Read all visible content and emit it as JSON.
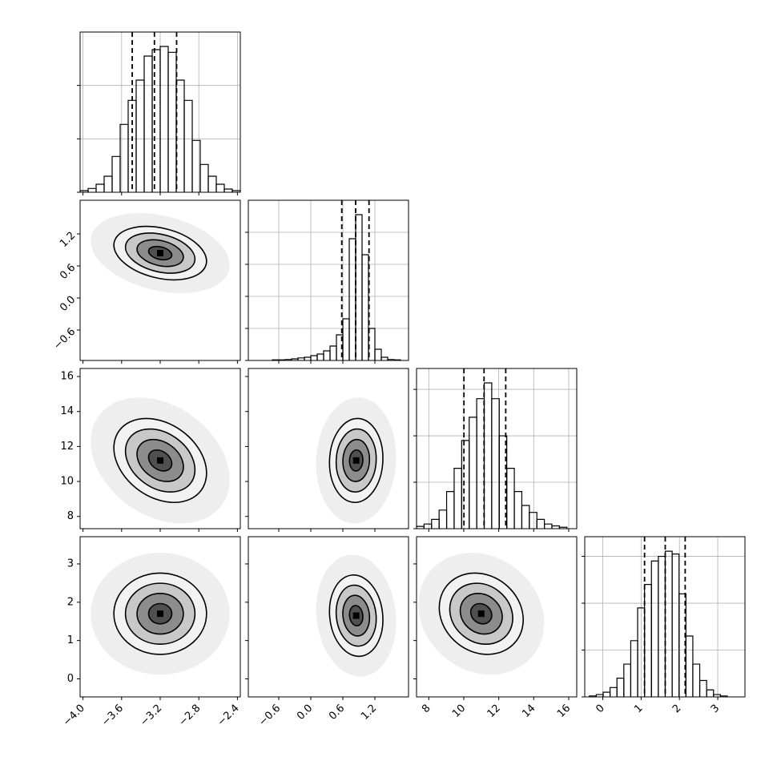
{
  "chart_data": {
    "type": "corner",
    "color": "#000000",
    "contour_levels": [
      0.5,
      1,
      1.5,
      2
    ],
    "params": [
      {
        "lim": [
          -4.03,
          -2.37
        ],
        "ticks": [
          {
            "value": -4.0,
            "label": "−4.0"
          },
          {
            "value": -3.6,
            "label": "−3.6"
          },
          {
            "value": -3.2,
            "label": "−3.2"
          },
          {
            "value": -2.8,
            "label": "−2.8"
          },
          {
            "value": -2.4,
            "label": "−2.4"
          }
        ],
        "quantiles": [
          -3.49,
          -3.26,
          -3.03
        ],
        "sd": 0.24,
        "bins": [
          -4.03,
          -3.947,
          -3.864,
          -3.781,
          -3.698,
          -3.615,
          -3.532,
          -3.449,
          -3.366,
          -3.283,
          -3.2,
          -3.117,
          -3.034,
          -2.951,
          -2.868,
          -2.785,
          -2.702,
          -2.619,
          -2.536,
          -2.453,
          -2.37
        ],
        "counts": [
          0.03,
          0.07,
          0.15,
          0.3,
          0.67,
          1.27,
          1.72,
          2.1,
          2.55,
          2.67,
          2.73,
          2.62,
          2.1,
          1.72,
          0.97,
          0.52,
          0.3,
          0.15,
          0.06,
          0.03
        ],
        "hist_ylim": [
          0,
          3
        ],
        "hist_yticks": [
          0,
          1,
          2
        ]
      },
      {
        "lim": [
          -1.17,
          1.83
        ],
        "ticks": [
          {
            "value": -0.6,
            "label": "−0.6"
          },
          {
            "value": 0.0,
            "label": "0.0"
          },
          0.6,
          1.2
        ],
        "quantiles": [
          0.58,
          0.84,
          1.09
        ],
        "sd": 0.25,
        "bins": [
          -0.72,
          -0.6,
          -0.48,
          -0.36,
          -0.24,
          -0.12,
          0,
          0.12,
          0.24,
          0.36,
          0.48,
          0.6,
          0.72,
          0.84,
          0.96,
          1.08,
          1.2,
          1.32,
          1.44,
          1.56,
          1.68
        ],
        "counts": [
          0.02,
          0.02,
          0.03,
          0.05,
          0.08,
          0.1,
          0.15,
          0.2,
          0.3,
          0.45,
          0.8,
          1.3,
          3.8,
          4.55,
          3.3,
          1.0,
          0.35,
          0.1,
          0.03,
          0.02
        ],
        "hist_ylim": [
          0,
          5
        ],
        "hist_yticks": [
          0,
          1,
          2,
          3,
          4
        ]
      },
      {
        "lim": [
          7.3,
          16.46
        ],
        "ticks": [
          8,
          10,
          12,
          14,
          16
        ],
        "quantiles": [
          10.01,
          11.16,
          12.4
        ],
        "sd": 1.2,
        "bins": [
          7.3,
          7.73,
          8.16,
          8.59,
          9.02,
          9.45,
          9.88,
          10.31,
          10.74,
          11.17,
          11.6,
          12.03,
          12.46,
          12.89,
          13.32,
          13.75,
          14.18,
          14.61,
          15.04,
          15.47,
          15.9
        ],
        "counts": [
          0.05,
          0.1,
          0.2,
          0.4,
          0.8,
          1.3,
          1.9,
          2.4,
          2.8,
          3.14,
          2.8,
          2.0,
          1.3,
          0.8,
          0.5,
          0.35,
          0.2,
          0.1,
          0.06,
          0.03
        ],
        "hist_ylim": [
          0,
          3.45
        ],
        "hist_yticks": [
          0,
          1,
          2,
          3
        ]
      },
      {
        "lim": [
          -0.47,
          3.71
        ],
        "ticks": [
          0,
          1,
          2,
          3
        ],
        "quantiles": [
          1.09,
          1.63,
          2.15
        ],
        "sd": 0.53,
        "bins": [
          -0.35,
          -0.17,
          0.01,
          0.19,
          0.37,
          0.55,
          0.73,
          0.91,
          1.09,
          1.27,
          1.45,
          1.63,
          1.81,
          1.99,
          2.17,
          2.35,
          2.53,
          2.71,
          2.89,
          3.07,
          3.25
        ],
        "counts": [
          0.02,
          0.05,
          0.1,
          0.2,
          0.4,
          0.7,
          1.2,
          1.9,
          2.4,
          2.9,
          3.0,
          3.11,
          3.05,
          2.2,
          1.3,
          0.7,
          0.35,
          0.15,
          0.05,
          0.02
        ],
        "hist_ylim": [
          0,
          3.42
        ],
        "hist_yticks": [
          0,
          1,
          2,
          3
        ]
      }
    ],
    "pairs": [
      {
        "x": 0,
        "y": 1,
        "center": [
          -3.2,
          0.84
        ],
        "rho": -0.3
      },
      {
        "x": 0,
        "y": 2,
        "center": [
          -3.2,
          11.2
        ],
        "rho": -0.3
      },
      {
        "x": 1,
        "y": 2,
        "center": [
          0.85,
          11.2
        ],
        "rho": 0.05
      },
      {
        "x": 0,
        "y": 3,
        "center": [
          -3.2,
          1.7
        ],
        "rho": 0
      },
      {
        "x": 1,
        "y": 3,
        "center": [
          0.85,
          1.65
        ],
        "rho": -0.1
      },
      {
        "x": 2,
        "y": 3,
        "center": [
          11.0,
          1.7
        ],
        "rho": -0.15
      }
    ]
  }
}
